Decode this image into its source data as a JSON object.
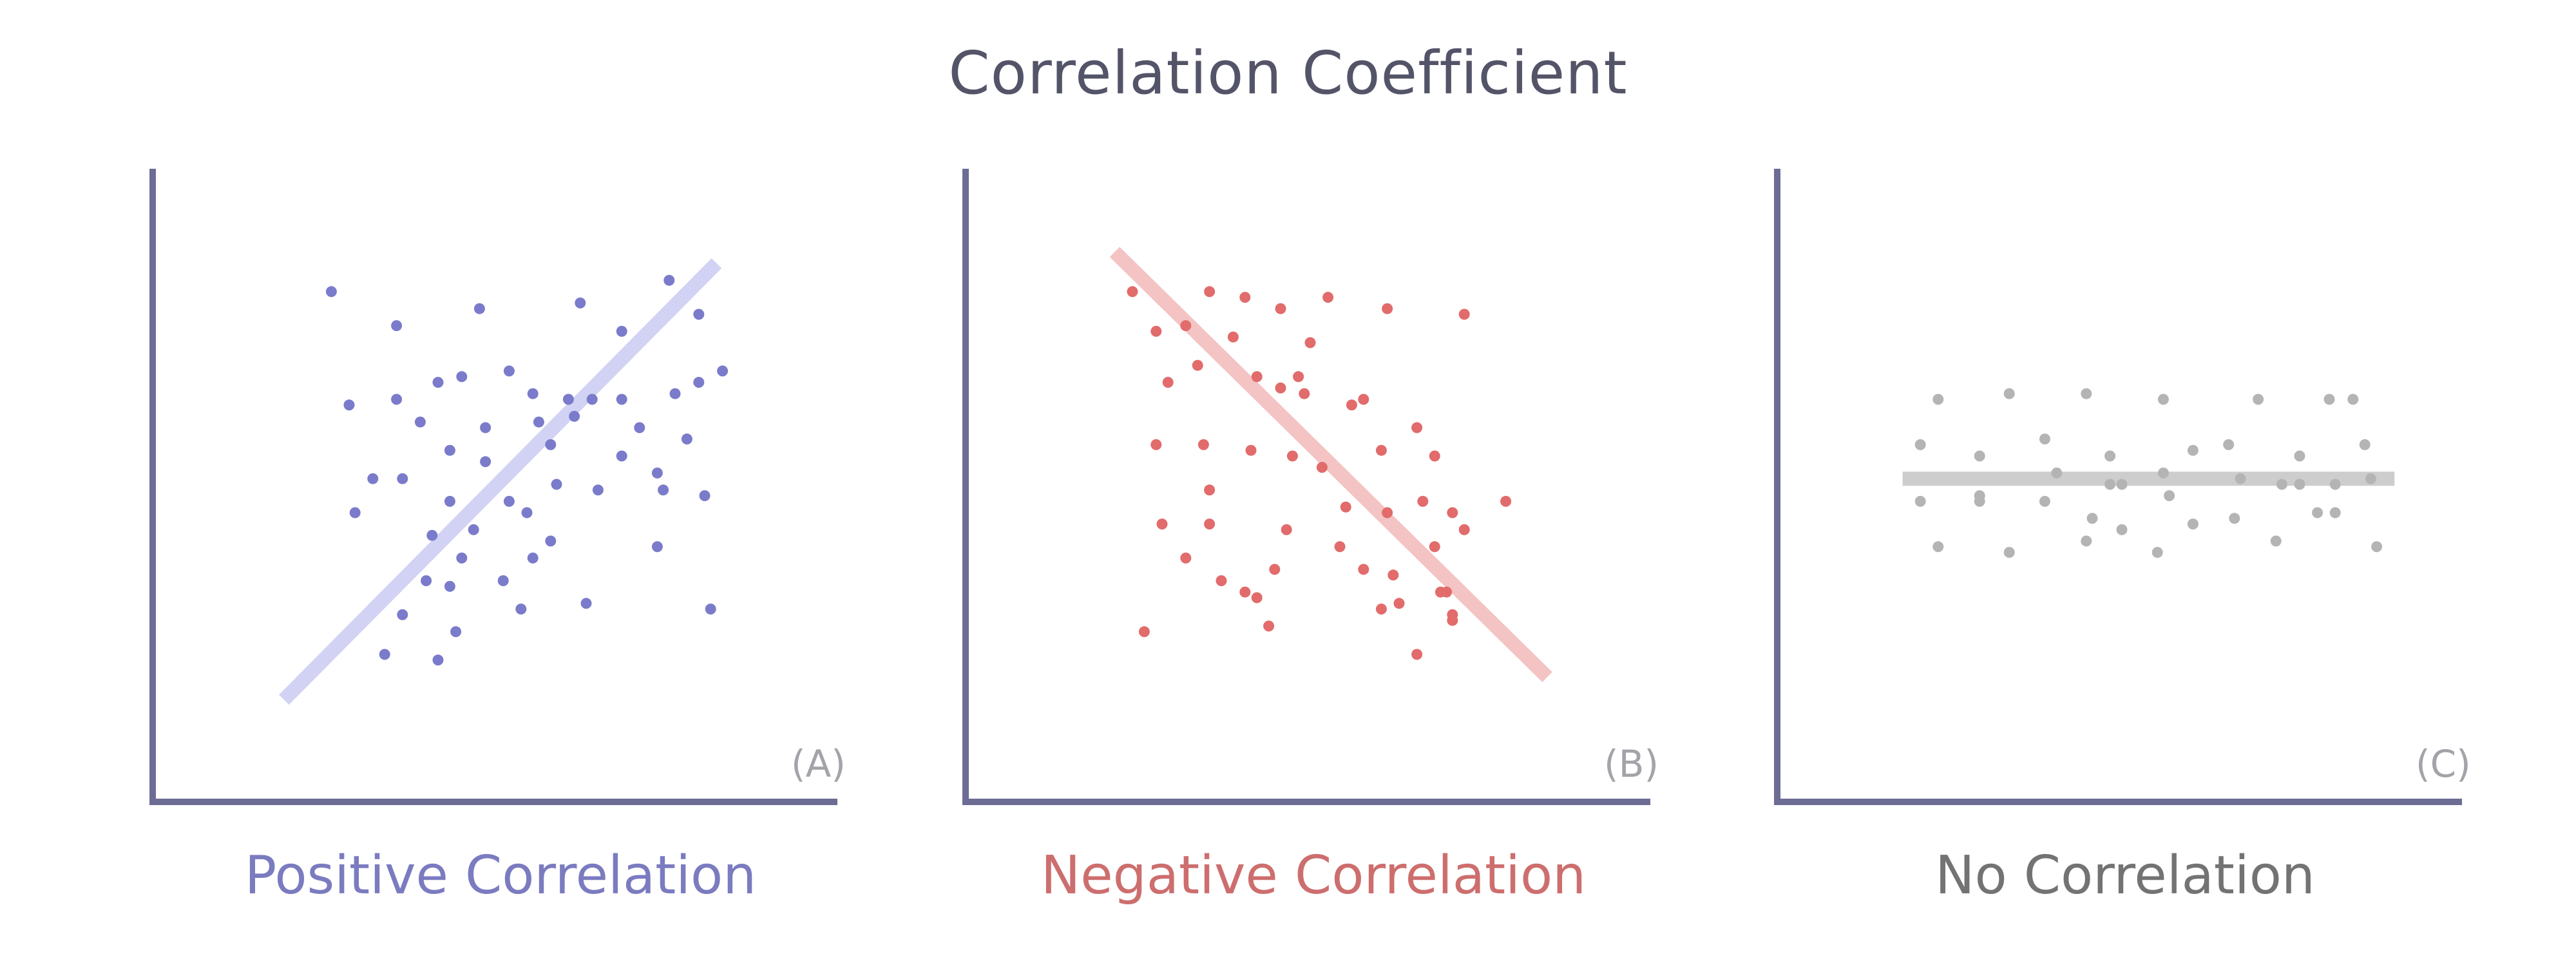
{
  "page": {
    "title": "Correlation Coefficient"
  },
  "colors": {
    "axis": "#6c6c94"
  },
  "chart_data": [
    {
      "type": "scatter",
      "tag": "(A)",
      "label": "Positive Correlation",
      "color": "#7b7bcb",
      "line_color": "#d2d2f4",
      "label_color": "#7b7bc0",
      "xlim": [
        0,
        100
      ],
      "ylim": [
        0,
        100
      ],
      "trend": [
        [
          14,
          12
        ],
        [
          87,
          89
        ]
      ],
      "points": [
        [
          22,
          84
        ],
        [
          33,
          78
        ],
        [
          47,
          81
        ],
        [
          64,
          82
        ],
        [
          71,
          77
        ],
        [
          79,
          86
        ],
        [
          84,
          80
        ],
        [
          25,
          64
        ],
        [
          33,
          65
        ],
        [
          40,
          68
        ],
        [
          44,
          69
        ],
        [
          52,
          70
        ],
        [
          56,
          66
        ],
        [
          62,
          65
        ],
        [
          66,
          65
        ],
        [
          71,
          65
        ],
        [
          80,
          66
        ],
        [
          82,
          58
        ],
        [
          37,
          61
        ],
        [
          42,
          56
        ],
        [
          48,
          60
        ],
        [
          57,
          61
        ],
        [
          63,
          62
        ],
        [
          74,
          60
        ],
        [
          34,
          51
        ],
        [
          48,
          54
        ],
        [
          59,
          57
        ],
        [
          71,
          55
        ],
        [
          29,
          51
        ],
        [
          77,
          52
        ],
        [
          88,
          70
        ],
        [
          84,
          68
        ],
        [
          26,
          45
        ],
        [
          42,
          47
        ],
        [
          52,
          47
        ],
        [
          60,
          50
        ],
        [
          67,
          49
        ],
        [
          78,
          49
        ],
        [
          39,
          41
        ],
        [
          46,
          42
        ],
        [
          59,
          40
        ],
        [
          85,
          48
        ],
        [
          44,
          37
        ],
        [
          56,
          37
        ],
        [
          38,
          33
        ],
        [
          42,
          32
        ],
        [
          51,
          33
        ],
        [
          54,
          28
        ],
        [
          34,
          27
        ],
        [
          65,
          29
        ],
        [
          86,
          28
        ],
        [
          31,
          20
        ],
        [
          40,
          19
        ],
        [
          43,
          24
        ],
        [
          77,
          39
        ],
        [
          55,
          45
        ]
      ]
    },
    {
      "type": "scatter",
      "tag": "(B)",
      "label": "Negative Correlation",
      "color": "#e26b6b",
      "line_color": "#f4c3c3",
      "label_color": "#cd6e6e",
      "xlim": [
        0,
        100
      ],
      "ylim": [
        0,
        100
      ],
      "trend": [
        [
          17,
          91
        ],
        [
          90,
          16
        ]
      ],
      "points": [
        [
          20,
          84
        ],
        [
          33,
          84
        ],
        [
          45,
          81
        ],
        [
          39,
          83
        ],
        [
          53,
          83
        ],
        [
          63,
          81
        ],
        [
          76,
          80
        ],
        [
          29,
          78
        ],
        [
          37,
          76
        ],
        [
          50,
          75
        ],
        [
          24,
          77
        ],
        [
          31,
          71
        ],
        [
          41,
          69
        ],
        [
          48,
          69
        ],
        [
          26,
          68
        ],
        [
          45,
          67
        ],
        [
          49,
          66
        ],
        [
          57,
          64
        ],
        [
          59,
          65
        ],
        [
          68,
          60
        ],
        [
          24,
          57
        ],
        [
          32,
          57
        ],
        [
          40,
          56
        ],
        [
          47,
          55
        ],
        [
          52,
          53
        ],
        [
          62,
          56
        ],
        [
          71,
          55
        ],
        [
          56,
          46
        ],
        [
          63,
          45
        ],
        [
          69,
          47
        ],
        [
          74,
          45
        ],
        [
          25,
          43
        ],
        [
          33,
          43
        ],
        [
          46,
          42
        ],
        [
          55,
          39
        ],
        [
          71,
          39
        ],
        [
          29,
          37
        ],
        [
          44,
          35
        ],
        [
          59,
          35
        ],
        [
          64,
          34
        ],
        [
          73,
          31
        ],
        [
          35,
          33
        ],
        [
          41,
          30
        ],
        [
          62,
          28
        ],
        [
          65,
          29
        ],
        [
          72,
          31
        ],
        [
          74,
          27
        ],
        [
          22,
          24
        ],
        [
          43,
          25
        ],
        [
          74,
          26
        ],
        [
          68,
          20
        ],
        [
          83,
          47
        ],
        [
          76,
          42
        ],
        [
          33,
          49
        ],
        [
          39,
          31
        ]
      ]
    },
    {
      "type": "scatter",
      "tag": "(C)",
      "label": "No Correlation",
      "color": "#b4b4b4",
      "line_color": "#cdcdcd",
      "label_color": "#737373",
      "xlim": [
        0,
        100
      ],
      "ylim": [
        0,
        100
      ],
      "trend": [
        [
          13,
          51
        ],
        [
          96,
          51
        ]
      ],
      "points": [
        [
          19,
          65
        ],
        [
          31,
          66
        ],
        [
          44,
          66
        ],
        [
          57,
          65
        ],
        [
          73,
          65
        ],
        [
          85,
          65
        ],
        [
          89,
          65
        ],
        [
          16,
          57
        ],
        [
          26,
          55
        ],
        [
          37,
          58
        ],
        [
          48,
          55
        ],
        [
          62,
          56
        ],
        [
          68,
          57
        ],
        [
          80,
          55
        ],
        [
          91,
          57
        ],
        [
          39,
          52
        ],
        [
          50,
          50
        ],
        [
          57,
          52
        ],
        [
          77,
          50
        ],
        [
          86,
          50
        ],
        [
          92,
          51
        ],
        [
          16,
          47
        ],
        [
          26,
          47
        ],
        [
          37,
          47
        ],
        [
          48,
          50
        ],
        [
          58,
          48
        ],
        [
          70,
          51
        ],
        [
          80,
          50
        ],
        [
          83,
          45
        ],
        [
          45,
          44
        ],
        [
          50,
          42
        ],
        [
          62,
          43
        ],
        [
          76,
          40
        ],
        [
          86,
          45
        ],
        [
          19,
          39
        ],
        [
          31,
          38
        ],
        [
          44,
          40
        ],
        [
          56,
          38
        ],
        [
          69,
          44
        ],
        [
          93,
          39
        ],
        [
          26,
          48
        ]
      ]
    }
  ]
}
